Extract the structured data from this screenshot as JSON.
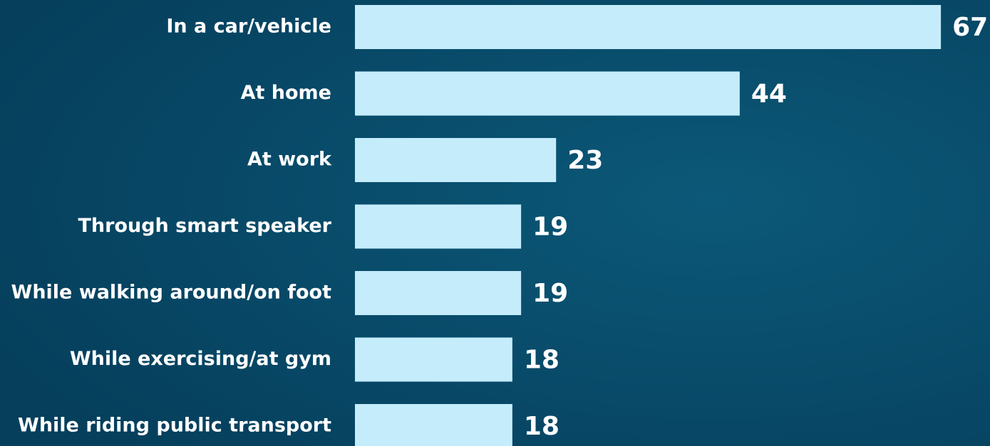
{
  "chart_data": {
    "type": "bar",
    "categories": [
      "In a car/vehicle",
      "At home",
      "At work",
      "Through smart speaker",
      "While walking around/on foot",
      "While exercising/at gym",
      "While riding public transport"
    ],
    "values": [
      67,
      44,
      23,
      19,
      19,
      18,
      18
    ],
    "color": "#c4ecfb"
  }
}
